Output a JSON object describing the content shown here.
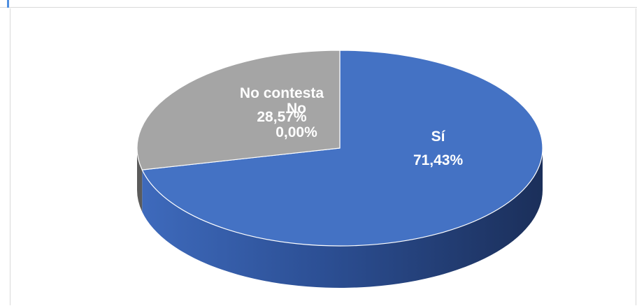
{
  "chart_data": {
    "type": "pie",
    "style": "3d",
    "title": "",
    "categories": [
      "Sí",
      "No",
      "No contesta"
    ],
    "values": [
      71.43,
      0.0,
      28.57
    ],
    "value_labels": [
      "71,43%",
      "0,00%",
      "28,57%"
    ],
    "colors": [
      "#4472c4",
      "#ed7d31",
      "#a5a5a5"
    ],
    "legend": "none",
    "data_labels": "inside"
  }
}
